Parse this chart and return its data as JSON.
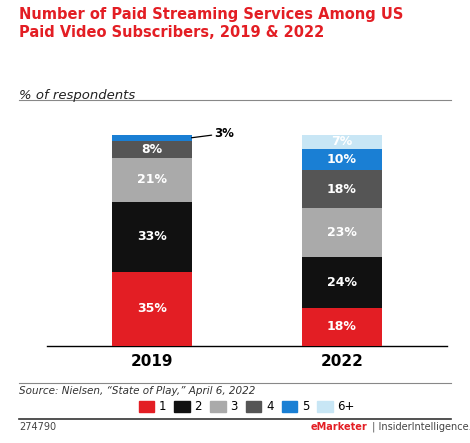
{
  "title": "Number of Paid Streaming Services Among US\nPaid Video Subscribers, 2019 & 2022",
  "subtitle": "% of respondents",
  "categories": [
    "2019",
    "2022"
  ],
  "series": [
    {
      "label": "1",
      "values": [
        35,
        18
      ],
      "color": "#e31e24"
    },
    {
      "label": "2",
      "values": [
        33,
        24
      ],
      "color": "#111111"
    },
    {
      "label": "3",
      "values": [
        21,
        23
      ],
      "color": "#aaaaaa"
    },
    {
      "label": "4",
      "values": [
        8,
        18
      ],
      "color": "#555555"
    },
    {
      "label": "5",
      "values": [
        3,
        10
      ],
      "color": "#1a7fd4"
    },
    {
      "label": "6+",
      "values": [
        0,
        7
      ],
      "color": "#c8e6f5"
    }
  ],
  "source": "Source: Nielsen, “State of Play,” April 6, 2022",
  "watermark": "274790",
  "brand": "eMarketer",
  "brand2": "InsiderIntelligence.com",
  "bar_width": 0.42,
  "title_color": "#e31e24",
  "background_color": "#ffffff"
}
